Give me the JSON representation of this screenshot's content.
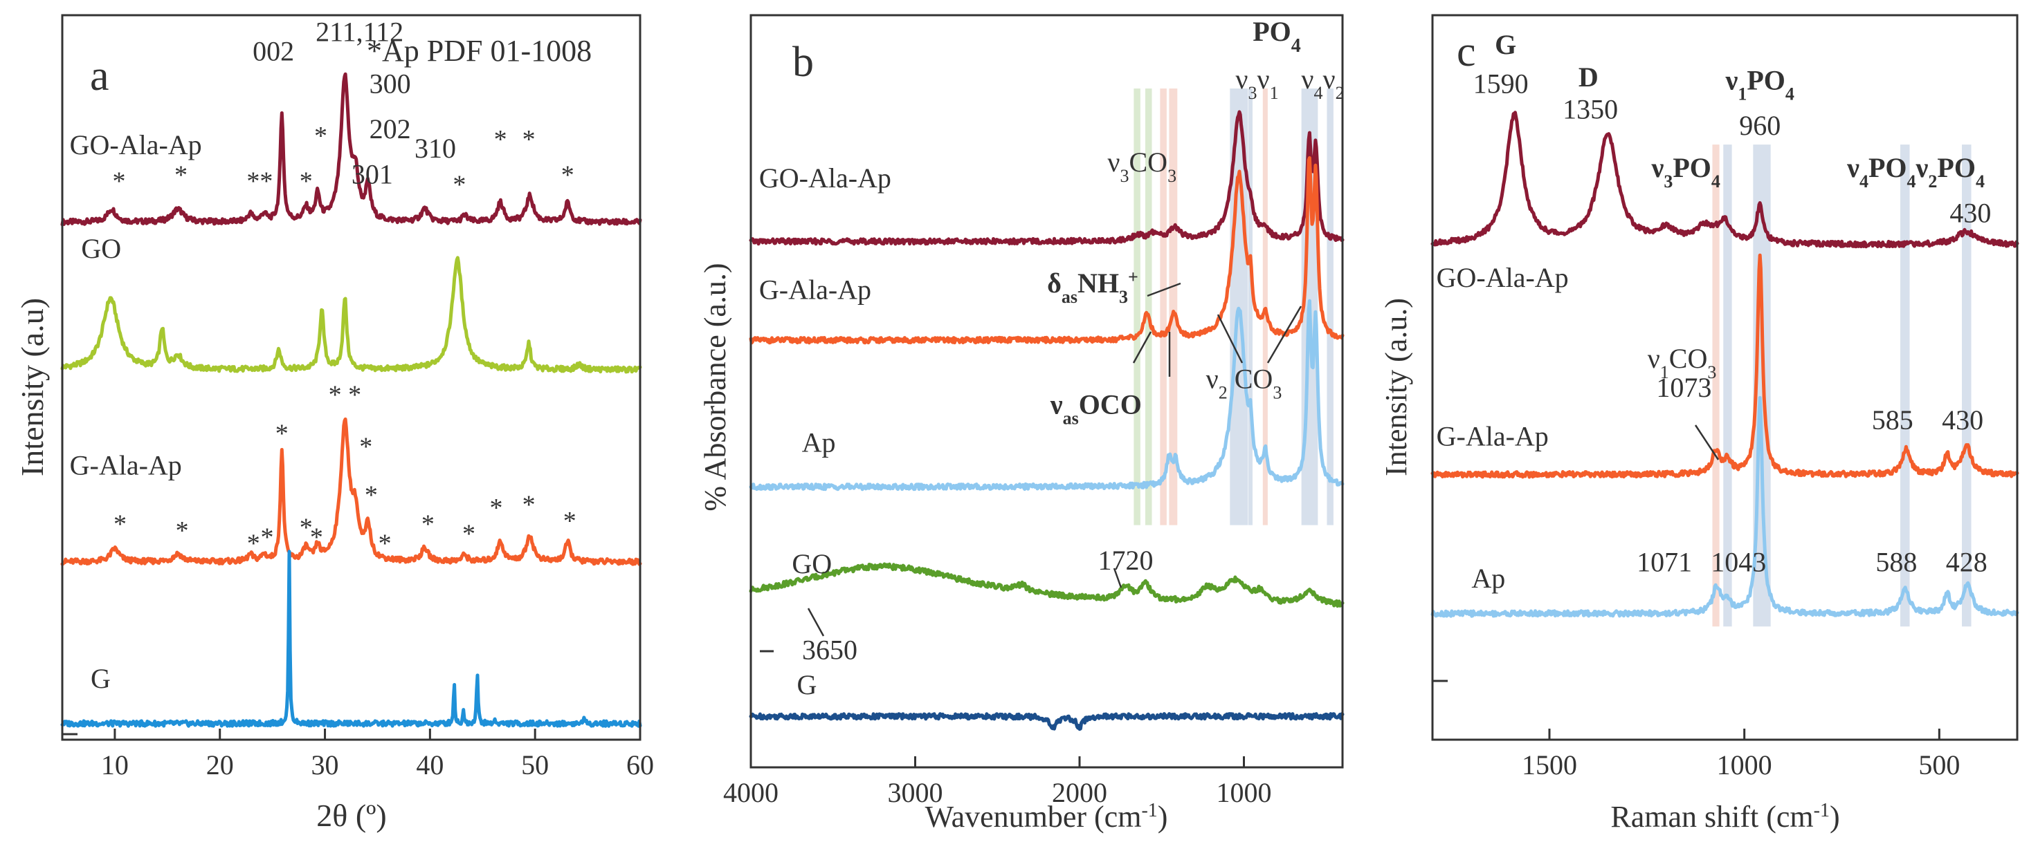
{
  "colors": {
    "go_ala_ap": "#8b1a34",
    "go": "#a6c72f",
    "g_ala_ap": "#f45d2a",
    "g": "#1e90d8",
    "ap": "#8ec8f0",
    "go_ftir": "#5a9e2a",
    "g_ftir": "#1c4f8c",
    "band_blue": "#c9d6e6",
    "band_green": "#cfe3c2",
    "band_pink": "#f4cfc4"
  },
  "chart_data": [
    {
      "type": "line",
      "panel_label": "a",
      "annotation": "*Ap PDF 01-1008",
      "xlabel": "2θ (º)",
      "ylabel": "Intensity (a.u)",
      "xlim": [
        5,
        60
      ],
      "xticks": [
        "10",
        "20",
        "30",
        "40",
        "50",
        "60"
      ],
      "xtick_values": [
        10,
        20,
        30,
        40,
        50,
        60
      ],
      "grid": false,
      "series": [
        {
          "name": "GO-Ala-Ap",
          "baseline": 0.78,
          "peaks": [
            [
              9.7,
              0.02,
              0.5
            ],
            [
              16,
              0.02,
              0.6
            ],
            [
              22.9,
              0.012,
              0.3
            ],
            [
              24.2,
              0.012,
              0.3
            ],
            [
              25.9,
              0.17,
              0.18
            ],
            [
              28.2,
              0.02,
              0.3
            ],
            [
              29.3,
              0.04,
              0.25
            ],
            [
              31.9,
              0.22,
              0.45
            ],
            [
              32.9,
              0.06,
              0.35
            ],
            [
              34.1,
              0.05,
              0.3
            ],
            [
              39.5,
              0.02,
              0.4
            ],
            [
              43.3,
              0.01,
              0.3
            ],
            [
              46.7,
              0.03,
              0.35
            ],
            [
              49.5,
              0.04,
              0.4
            ],
            [
              53.1,
              0.03,
              0.3
            ]
          ]
        },
        {
          "name": "GO",
          "baseline": 0.552,
          "peaks": [
            [
              9.6,
              0.11,
              0.9
            ],
            [
              14.5,
              0.06,
              0.25
            ],
            [
              16,
              0.02,
              0.5
            ],
            [
              25.6,
              0.03,
              0.25
            ],
            [
              29.7,
              0.09,
              0.25
            ],
            [
              31.9,
              0.11,
              0.22
            ],
            [
              42.6,
              0.17,
              0.6
            ],
            [
              49.4,
              0.04,
              0.22
            ],
            [
              54.2,
              0.008,
              0.3
            ]
          ]
        },
        {
          "name": "G-Ala-Ap",
          "baseline": 0.255,
          "peaks": [
            [
              10,
              0.02,
              0.5
            ],
            [
              16,
              0.012,
              0.5
            ],
            [
              22.9,
              0.01,
              0.3
            ],
            [
              24.2,
              0.01,
              0.3
            ],
            [
              25.9,
              0.17,
              0.18
            ],
            [
              28.2,
              0.02,
              0.3
            ],
            [
              29.3,
              0.02,
              0.25
            ],
            [
              31.9,
              0.21,
              0.5
            ],
            [
              32.9,
              0.06,
              0.35
            ],
            [
              34.1,
              0.05,
              0.3
            ],
            [
              39.5,
              0.02,
              0.4
            ],
            [
              43.3,
              0.01,
              0.3
            ],
            [
              46.7,
              0.03,
              0.35
            ],
            [
              49.5,
              0.04,
              0.4
            ],
            [
              53.1,
              0.03,
              0.3
            ]
          ]
        },
        {
          "name": "G",
          "baseline": 0.005,
          "peaks": [
            [
              26.6,
              0.27,
              0.07
            ],
            [
              42.3,
              0.065,
              0.07
            ],
            [
              43.2,
              0.02,
              0.07
            ],
            [
              44.5,
              0.08,
              0.08
            ],
            [
              46.2,
              0.005,
              0.1
            ],
            [
              54.6,
              0.008,
              0.1
            ]
          ]
        }
      ],
      "text_labels": [
        {
          "text": "GO-Ala-Ap",
          "x": 5.7,
          "y": 0.885
        },
        {
          "text": "GO",
          "x": 6.8,
          "y": 0.725
        },
        {
          "text": "G-Ala-Ap",
          "x": 5.7,
          "y": 0.39
        },
        {
          "text": "G",
          "x": 7.7,
          "y": 0.06
        },
        {
          "text": "002",
          "x": 25.1,
          "y": 1.03
        },
        {
          "text": "211,112",
          "x": 33.3,
          "y": 1.06
        },
        {
          "text": "300",
          "x": 36.2,
          "y": 0.98
        },
        {
          "text": "202",
          "x": 36.2,
          "y": 0.91
        },
        {
          "text": "301",
          "x": 34.5,
          "y": 0.84
        },
        {
          "text": "310",
          "x": 40.5,
          "y": 0.88
        },
        {
          "text": "*",
          "x": 10.4,
          "y": 0.83
        },
        {
          "text": "*",
          "x": 16.3,
          "y": 0.84
        },
        {
          "text": "**",
          "x": 23.8,
          "y": 0.83
        },
        {
          "text": "*",
          "x": 28.2,
          "y": 0.83
        },
        {
          "text": "*",
          "x": 29.6,
          "y": 0.9
        },
        {
          "text": "*",
          "x": 42.8,
          "y": 0.825
        },
        {
          "text": "*",
          "x": 46.7,
          "y": 0.895
        },
        {
          "text": "*",
          "x": 49.4,
          "y": 0.895
        },
        {
          "text": "*",
          "x": 53.1,
          "y": 0.84
        },
        {
          "text": "* *",
          "x": 31.9,
          "y": 0.5
        },
        {
          "text": "*",
          "x": 33.9,
          "y": 0.42
        },
        {
          "text": "*",
          "x": 34.4,
          "y": 0.345
        },
        {
          "text": "*",
          "x": 10.5,
          "y": 0.3
        },
        {
          "text": "*",
          "x": 16.4,
          "y": 0.29
        },
        {
          "text": "*",
          "x": 23.2,
          "y": 0.27
        },
        {
          "text": "*",
          "x": 24.5,
          "y": 0.28
        },
        {
          "text": "*",
          "x": 25.9,
          "y": 0.44
        },
        {
          "text": "*",
          "x": 28.2,
          "y": 0.295
        },
        {
          "text": "*",
          "x": 29.2,
          "y": 0.28
        },
        {
          "text": "*",
          "x": 35.7,
          "y": 0.27
        },
        {
          "text": "*",
          "x": 39.8,
          "y": 0.3
        },
        {
          "text": "*",
          "x": 43.7,
          "y": 0.285
        },
        {
          "text": "*",
          "x": 46.3,
          "y": 0.325
        },
        {
          "text": "*",
          "x": 49.4,
          "y": 0.33
        },
        {
          "text": "*",
          "x": 53.3,
          "y": 0.305
        }
      ]
    },
    {
      "type": "line",
      "panel_label": "b",
      "xlabel": "Wavenumber (cm-1)",
      "ylabel": "% Absorbance  (a.u.)",
      "xlim": [
        4000,
        400
      ],
      "xticks": [
        "4000",
        "3000",
        "2000",
        "1000"
      ],
      "xtick_values": [
        4000,
        3000,
        2000,
        1000
      ],
      "grid": false,
      "bands": [
        {
          "center": 1650,
          "width": 40,
          "color": "green"
        },
        {
          "center": 1580,
          "width": 40,
          "color": "green"
        },
        {
          "center": 1490,
          "width": 40,
          "color": "pink"
        },
        {
          "center": 1430,
          "width": 50,
          "color": "pink"
        },
        {
          "center": 1030,
          "width": 110,
          "color": "blue"
        },
        {
          "center": 960,
          "width": 25,
          "color": "blue"
        },
        {
          "center": 870,
          "width": 30,
          "color": "pink"
        },
        {
          "center": 600,
          "width": 100,
          "color": "blue"
        },
        {
          "center": 475,
          "width": 40,
          "color": "blue"
        }
      ],
      "series": [
        {
          "name": "GO-Ala-Ap",
          "baseline": 0.745,
          "peaks": [
            [
              1650,
              0.008,
              40
            ],
            [
              1550,
              0.01,
              40
            ],
            [
              1420,
              0.02,
              40
            ],
            [
              1030,
              0.2,
              45
            ],
            [
              960,
              0.02,
              10
            ],
            [
              870,
              0.01,
              15
            ],
            [
              603,
              0.15,
              15
            ],
            [
              563,
              0.14,
              15
            ]
          ]
        },
        {
          "name": "G-Ala-Ap",
          "baseline": 0.59,
          "peaks": [
            [
              1590,
              0.04,
              25
            ],
            [
              1425,
              0.04,
              25
            ],
            [
              1030,
              0.26,
              45
            ],
            [
              960,
              0.05,
              10
            ],
            [
              870,
              0.03,
              15
            ],
            [
              603,
              0.26,
              15
            ],
            [
              563,
              0.24,
              15
            ]
          ]
        },
        {
          "name": "Ap",
          "baseline": 0.36,
          "peaks": [
            [
              1455,
              0.04,
              20
            ],
            [
              1415,
              0.035,
              20
            ],
            [
              1030,
              0.28,
              45
            ],
            [
              960,
              0.05,
              10
            ],
            [
              870,
              0.04,
              15
            ],
            [
              603,
              0.26,
              15
            ],
            [
              563,
              0.24,
              15
            ]
          ]
        },
        {
          "name": "GO",
          "baseline": 0.17,
          "peaks": [
            [
              3200,
              0.065,
              700
            ],
            [
              2350,
              0.01,
              40
            ],
            [
              1720,
              0.02,
              40
            ],
            [
              1600,
              0.025,
              40
            ],
            [
              1220,
              0.02,
              60
            ],
            [
              1050,
              0.035,
              80
            ],
            [
              900,
              0.015,
              40
            ],
            [
              600,
              0.02,
              60
            ]
          ]
        },
        {
          "name": "G",
          "baseline": 0.0,
          "peaks": [
            [
              2160,
              -0.018,
              25
            ],
            [
              2000,
              -0.016,
              25
            ]
          ]
        }
      ],
      "text_labels": [
        {
          "text": "GO-Ala-Ap",
          "x": 3950,
          "y": 0.83
        },
        {
          "text": "G-Ala-Ap",
          "x": 3950,
          "y": 0.655
        },
        {
          "text": "Ap",
          "x": 3690,
          "y": 0.415
        },
        {
          "text": "GO",
          "x": 3750,
          "y": 0.225
        },
        {
          "text": "G",
          "x": 3720,
          "y": 0.035
        },
        {
          "text": "1720",
          "x": 1720,
          "y": 0.23
        },
        {
          "text": "3650",
          "x": 3520,
          "y": 0.09
        },
        {
          "text": "ν3CO3",
          "x": 1620,
          "y": 0.855
        },
        {
          "text": "δasNH3+",
          "x": 1920,
          "y": 0.665
        },
        {
          "text": "νasOCO",
          "x": 1900,
          "y": 0.475
        },
        {
          "text": "ν2 CO3",
          "x": 1000,
          "y": 0.515
        },
        {
          "text": "PO4",
          "x": 800,
          "y": 1.06
        },
        {
          "text": "ν3ν1",
          "x": 920,
          "y": 0.985
        },
        {
          "text": "ν4ν2",
          "x": 520,
          "y": 0.985
        }
      ]
    },
    {
      "type": "line",
      "panel_label": "c",
      "xlabel": "Raman shift (cm-1)",
      "ylabel": "Intensity (a.u.)",
      "xlim": [
        1800,
        300
      ],
      "xticks": [
        "1500",
        "1000",
        "500"
      ],
      "xtick_values": [
        1500,
        1000,
        500
      ],
      "grid": false,
      "bands": [
        {
          "center": 1073,
          "width": 18,
          "color": "pink"
        },
        {
          "center": 1043,
          "width": 22,
          "color": "blue"
        },
        {
          "center": 955,
          "width": 45,
          "color": "blue"
        },
        {
          "center": 588,
          "width": 24,
          "color": "blue"
        },
        {
          "center": 430,
          "width": 24,
          "color": "blue"
        }
      ],
      "series": [
        {
          "name": "GO-Ala-Ap",
          "baseline": 0.745,
          "peaks": [
            [
              1590,
              0.2,
              25
            ],
            [
              1350,
              0.17,
              30
            ],
            [
              1200,
              0.02,
              30
            ],
            [
              1100,
              0.025,
              30
            ],
            [
              1050,
              0.03,
              20
            ],
            [
              960,
              0.06,
              10
            ],
            [
              430,
              0.02,
              30
            ]
          ]
        },
        {
          "name": "G-Ala-Ap",
          "baseline": 0.39,
          "peaks": [
            [
              1073,
              0.035,
              12
            ],
            [
              1043,
              0.02,
              12
            ],
            [
              960,
              0.34,
              8
            ],
            [
              585,
              0.04,
              12
            ],
            [
              480,
              0.03,
              8
            ],
            [
              430,
              0.045,
              14
            ]
          ]
        },
        {
          "name": "Ap",
          "baseline": 0.175,
          "peaks": [
            [
              1071,
              0.04,
              12
            ],
            [
              1043,
              0.015,
              12
            ],
            [
              960,
              0.33,
              8
            ],
            [
              588,
              0.04,
              12
            ],
            [
              480,
              0.03,
              8
            ],
            [
              428,
              0.045,
              14
            ]
          ]
        }
      ],
      "text_labels": [
        {
          "text": "G",
          "x": 1640,
          "y": 1.04
        },
        {
          "text": "1590",
          "x": 1625,
          "y": 0.98
        },
        {
          "text": "D",
          "x": 1400,
          "y": 0.99
        },
        {
          "text": "1350",
          "x": 1395,
          "y": 0.94
        },
        {
          "text": "ν1PO4",
          "x": 960,
          "y": 0.985
        },
        {
          "text": "960",
          "x": 960,
          "y": 0.915
        },
        {
          "text": "ν3PO4",
          "x": 1150,
          "y": 0.85
        },
        {
          "text": "ν4PO4ν2PO4",
          "x": 560,
          "y": 0.85
        },
        {
          "text": "430",
          "x": 420,
          "y": 0.78
        },
        {
          "text": "GO-Ala-Ap",
          "x": 1790,
          "y": 0.68
        },
        {
          "text": "ν1CO3",
          "x": 1160,
          "y": 0.555
        },
        {
          "text": "1073",
          "x": 1155,
          "y": 0.51
        },
        {
          "text": "G-Ala-Ap",
          "x": 1790,
          "y": 0.435
        },
        {
          "text": "585",
          "x": 620,
          "y": 0.46
        },
        {
          "text": "430",
          "x": 440,
          "y": 0.46
        },
        {
          "text": "Ap",
          "x": 1700,
          "y": 0.215
        },
        {
          "text": "1071",
          "x": 1205,
          "y": 0.24
        },
        {
          "text": "1043",
          "x": 1015,
          "y": 0.24
        },
        {
          "text": "588",
          "x": 610,
          "y": 0.24
        },
        {
          "text": "428",
          "x": 430,
          "y": 0.24
        }
      ]
    }
  ]
}
